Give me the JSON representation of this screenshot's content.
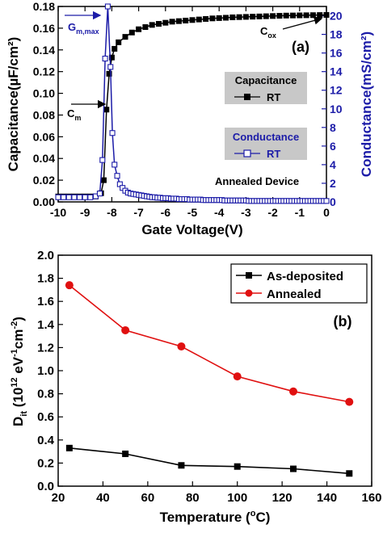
{
  "chart_data": [
    {
      "type": "line",
      "panel_label": "(a)",
      "xlabel": "Gate Voltage(V)",
      "ylabel_left": "Capacitance(µF/cm²)",
      "ylabel_right": "Conductance(mS/cm²)",
      "xlim": [
        -10,
        0
      ],
      "ylim_left": [
        0,
        0.18
      ],
      "ylim_right": [
        0,
        21
      ],
      "x_ticks": [
        -10,
        -9,
        -8,
        -7,
        -6,
        -5,
        -4,
        -3,
        -2,
        -1,
        0
      ],
      "y_ticks_left": [
        0.0,
        0.02,
        0.04,
        0.06,
        0.08,
        0.1,
        0.12,
        0.14,
        0.16,
        0.18
      ],
      "y_ticks_right": [
        0,
        2,
        4,
        6,
        8,
        10,
        12,
        14,
        16,
        18,
        20
      ],
      "legend_capacitance": {
        "title": "Capacitance",
        "entry": "RT"
      },
      "legend_conductance": {
        "title": "Conductance",
        "entry": "RT"
      },
      "annotation_device": "Annealed Device",
      "annotation_cox": {
        "base": "C",
        "sub": "ox"
      },
      "annotation_cm": {
        "base": "C",
        "sub": "m"
      },
      "annotation_gmax": {
        "base": "G",
        "sub": "m,max"
      },
      "colors": {
        "capacitance": "#000000",
        "conductance": "#1c1ca8",
        "legend_bg": "#c8c8c8"
      },
      "series": [
        {
          "name": "Capacitance",
          "axis": "left",
          "marker": "filled-square",
          "x": [
            -10,
            -9.8,
            -9.6,
            -9.4,
            -9.2,
            -9.0,
            -8.8,
            -8.6,
            -8.4,
            -8.3,
            -8.2,
            -8.1,
            -8.0,
            -7.9,
            -7.75,
            -7.5,
            -7.25,
            -7.0,
            -6.75,
            -6.5,
            -6.25,
            -6.0,
            -5.75,
            -5.5,
            -5.25,
            -5.0,
            -4.75,
            -4.5,
            -4.25,
            -4.0,
            -3.75,
            -3.5,
            -3.25,
            -3.0,
            -2.75,
            -2.5,
            -2.25,
            -2.0,
            -1.75,
            -1.5,
            -1.25,
            -1.0,
            -0.75,
            -0.5,
            -0.25,
            0.0
          ],
          "y": [
            0.005,
            0.005,
            0.005,
            0.005,
            0.005,
            0.005,
            0.005,
            0.005,
            0.008,
            0.02,
            0.085,
            0.118,
            0.133,
            0.141,
            0.147,
            0.152,
            0.156,
            0.159,
            0.161,
            0.163,
            0.164,
            0.165,
            0.166,
            0.1665,
            0.167,
            0.1675,
            0.168,
            0.1685,
            0.169,
            0.1693,
            0.1696,
            0.17,
            0.1702,
            0.1704,
            0.1706,
            0.1708,
            0.171,
            0.1712,
            0.1714,
            0.1716,
            0.1717,
            0.1718,
            0.1719,
            0.172,
            0.1721,
            0.1722
          ]
        },
        {
          "name": "Conductance",
          "axis": "right",
          "marker": "open-square",
          "x": [
            -10,
            -9.8,
            -9.6,
            -9.4,
            -9.2,
            -9.0,
            -8.8,
            -8.6,
            -8.45,
            -8.35,
            -8.25,
            -8.15,
            -8.05,
            -7.98,
            -7.9,
            -7.8,
            -7.7,
            -7.6,
            -7.5,
            -7.4,
            -7.3,
            -7.2,
            -7.1,
            -7.0,
            -6.9,
            -6.8,
            -6.7,
            -6.6,
            -6.5,
            -6.4,
            -6.3,
            -6.2,
            -6.1,
            -6.0,
            -5.9,
            -5.8,
            -5.7,
            -5.6,
            -5.5,
            -5.4,
            -5.3,
            -5.2,
            -5.1,
            -5.0,
            -4.9,
            -4.8,
            -4.7,
            -4.6,
            -4.5,
            -4.4,
            -4.3,
            -4.2,
            -4.1,
            -4.0,
            -3.9,
            -3.8,
            -3.7,
            -3.6,
            -3.5,
            -3.4,
            -3.3,
            -3.2,
            -3.1,
            -3.0,
            -2.9,
            -2.8,
            -2.7,
            -2.6,
            -2.5,
            -2.4,
            -2.3,
            -2.2,
            -2.1,
            -2.0,
            -1.9,
            -1.8,
            -1.7,
            -1.6,
            -1.5,
            -1.4,
            -1.3,
            -1.2,
            -1.1,
            -1.0,
            -0.9,
            -0.8,
            -0.7,
            -0.6,
            -0.5,
            -0.4,
            -0.3,
            -0.2,
            -0.1,
            0.0
          ],
          "y": [
            0.5,
            0.5,
            0.5,
            0.5,
            0.5,
            0.5,
            0.5,
            0.6,
            0.9,
            4.5,
            15.4,
            21.0,
            14.5,
            7.4,
            4.0,
            2.8,
            1.9,
            1.5,
            1.2,
            1.0,
            0.9,
            0.85,
            0.8,
            0.75,
            0.7,
            0.65,
            0.6,
            0.55,
            0.5,
            0.5,
            0.45,
            0.45,
            0.4,
            0.4,
            0.4,
            0.35,
            0.35,
            0.35,
            0.3,
            0.3,
            0.3,
            0.3,
            0.25,
            0.25,
            0.25,
            0.25,
            0.25,
            0.2,
            0.2,
            0.2,
            0.2,
            0.2,
            0.2,
            0.2,
            0.2,
            0.15,
            0.15,
            0.15,
            0.15,
            0.15,
            0.15,
            0.15,
            0.15,
            0.15,
            0.1,
            0.1,
            0.1,
            0.1,
            0.1,
            0.1,
            0.1,
            0.1,
            0.1,
            0.1,
            0.1,
            0.1,
            0.1,
            0.1,
            0.1,
            0.1,
            0.1,
            0.1,
            0.1,
            0.1,
            0.1,
            0.1,
            0.1,
            0.1,
            0.1,
            0.1,
            0.1,
            0.1,
            0.1,
            0.1
          ]
        }
      ]
    },
    {
      "type": "line",
      "panel_label": "(b)",
      "xlabel": "Temperature (°C)",
      "ylabel": "D_it (10^12 eV^-1 cm^-2)",
      "ylabel_parts": {
        "d": "D",
        "sub": "it",
        "open": " (10",
        "sup1": "12",
        "ev": " eV",
        "sup2": "-1",
        "cm": "cm",
        "sup3": "-2",
        "close": ")"
      },
      "xlabel_parts": {
        "base": "Temperature (",
        "sup": "o",
        "end": "C)"
      },
      "xlim": [
        20,
        160
      ],
      "ylim": [
        0,
        2.0
      ],
      "x_ticks": [
        20,
        40,
        60,
        80,
        100,
        120,
        140,
        160
      ],
      "y_ticks": [
        0.0,
        0.2,
        0.4,
        0.6,
        0.8,
        1.0,
        1.2,
        1.4,
        1.6,
        1.8,
        2.0
      ],
      "legend_placement": "top-right",
      "colors": {
        "As-deposited": "#000000",
        "Annealed": "#e01010"
      },
      "series": [
        {
          "name": "As-deposited",
          "marker": "square",
          "x": [
            25,
            50,
            75,
            100,
            125,
            150
          ],
          "y": [
            0.33,
            0.28,
            0.18,
            0.17,
            0.15,
            0.11
          ]
        },
        {
          "name": "Annealed",
          "marker": "circle",
          "x": [
            25,
            50,
            75,
            100,
            125,
            150
          ],
          "y": [
            1.74,
            1.35,
            1.21,
            0.95,
            0.82,
            0.73
          ]
        }
      ]
    }
  ]
}
